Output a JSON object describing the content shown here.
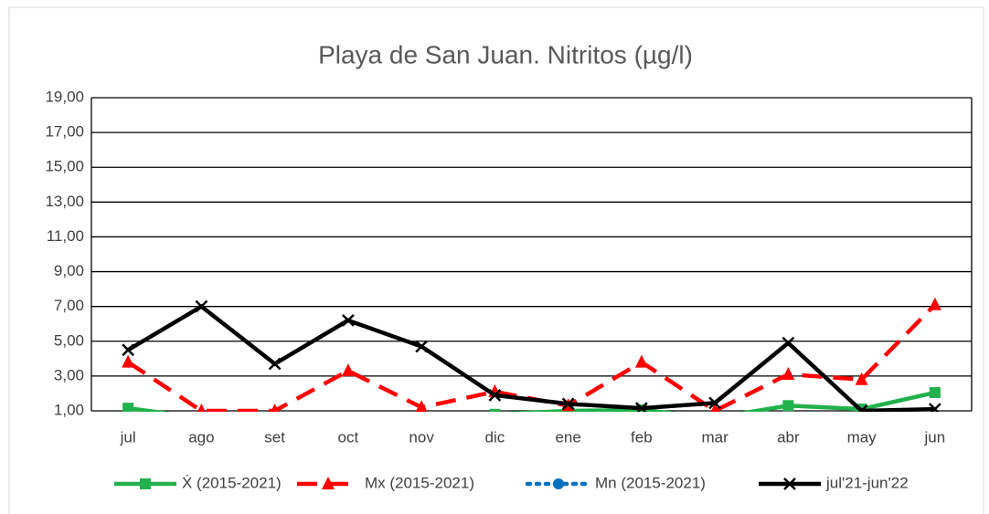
{
  "chart_data": {
    "type": "line",
    "title": "Playa de San Juan. Nitritos (µg/l)",
    "categories": [
      "jul",
      "ago",
      "set",
      "oct",
      "nov",
      "dic",
      "ene",
      "feb",
      "mar",
      "abr",
      "may",
      "jun"
    ],
    "series": [
      {
        "name": "Ẋ (2015-2021)",
        "color": "#22b14c",
        "dash": "solid",
        "marker": "square",
        "values": [
          1.15,
          0.6,
          0.5,
          0.6,
          0.5,
          0.8,
          1.0,
          1.05,
          0.6,
          1.3,
          1.1,
          2.05
        ]
      },
      {
        "name": "Mx (2015-2021)",
        "color": "#ff0000",
        "dash": "dashed",
        "marker": "triangle",
        "values": [
          3.8,
          1.0,
          1.0,
          3.3,
          1.2,
          2.1,
          1.3,
          3.8,
          1.0,
          3.1,
          2.8,
          7.1
        ]
      },
      {
        "name": "Mn (2015-2021)",
        "color": "#0070c0",
        "dash": "dotted",
        "marker": "circle",
        "values": [
          0.3,
          0.2,
          0.2,
          0.3,
          0.2,
          0.3,
          0.4,
          0.3,
          0.2,
          0.4,
          0.3,
          0.5
        ]
      },
      {
        "name": "jul'21-jun'22",
        "color": "#000000",
        "dash": "solid",
        "marker": "x",
        "values": [
          4.5,
          7.0,
          3.7,
          6.2,
          4.7,
          1.9,
          1.4,
          1.15,
          1.45,
          4.9,
          1.0,
          1.1
        ]
      }
    ],
    "ylim": [
      1,
      19
    ],
    "yticks": [
      {
        "value": 1,
        "label": "1,00"
      },
      {
        "value": 3,
        "label": "3,00"
      },
      {
        "value": 5,
        "label": "5,00"
      },
      {
        "value": 7,
        "label": "7,00"
      },
      {
        "value": 9,
        "label": "9,00"
      },
      {
        "value": 11,
        "label": "11,00"
      },
      {
        "value": 13,
        "label": "13,00"
      },
      {
        "value": 15,
        "label": "15,00"
      },
      {
        "value": 17,
        "label": "17,00"
      },
      {
        "value": 19,
        "label": "19,00"
      }
    ],
    "grid": true,
    "legend": "bottom"
  }
}
